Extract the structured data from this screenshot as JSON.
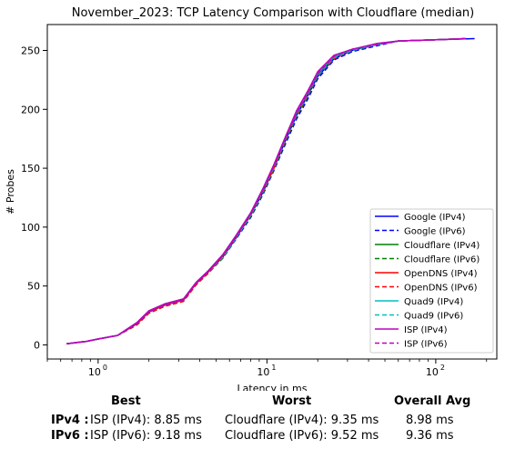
{
  "chart_data": {
    "type": "line",
    "title": "November_2023: TCP Latency Comparison with Cloudflare (median)",
    "xlabel": "Latency in ms",
    "ylabel": "# Probes",
    "xscale": "log",
    "xlim": [
      0.5,
      230
    ],
    "ylim": [
      -12,
      272
    ],
    "x_ticks": [
      1,
      10,
      100
    ],
    "x_tick_labels": [
      "10",
      "10",
      "10"
    ],
    "x_tick_exponents": [
      "0",
      "1",
      "2"
    ],
    "y_ticks": [
      0,
      50,
      100,
      150,
      200,
      250
    ],
    "y_tick_labels": [
      "0",
      "50",
      "100",
      "150",
      "200",
      "250"
    ],
    "grid": false,
    "legend_position": "lower right",
    "series": [
      {
        "name": "Google (IPv4)",
        "color": "#0000ff",
        "dash": false,
        "x": [
          0.65,
          0.85,
          1.0,
          1.3,
          1.7,
          2.0,
          2.5,
          3.2,
          3.8,
          4.5,
          5.5,
          6.5,
          8.0,
          9.5,
          11.0,
          13.0,
          15.0,
          17.5,
          20.0,
          25.0,
          32.0,
          45.0,
          60.0,
          100.0,
          170.0
        ],
        "y": [
          1,
          3,
          5,
          8,
          18,
          28,
          34,
          38,
          52,
          62,
          75,
          90,
          110,
          130,
          150,
          175,
          195,
          212,
          228,
          243,
          250,
          255,
          258,
          259,
          260
        ]
      },
      {
        "name": "Google (IPv6)",
        "color": "#0000ff",
        "dash": true,
        "x": [
          0.65,
          0.85,
          1.0,
          1.3,
          1.7,
          2.0,
          2.5,
          3.2,
          3.8,
          4.5,
          5.5,
          6.5,
          8.0,
          9.5,
          11.0,
          13.0,
          15.0,
          17.5,
          20.0,
          25.0,
          32.0,
          45.0,
          60.0,
          100.0,
          150.0
        ],
        "y": [
          1,
          3,
          5,
          8,
          17,
          27,
          33,
          37,
          51,
          61,
          74,
          89,
          108,
          128,
          148,
          172,
          192,
          209,
          226,
          242,
          249,
          254,
          258,
          259,
          260
        ]
      },
      {
        "name": "Cloudflare (IPv4)",
        "color": "#008000",
        "dash": false,
        "x": [
          0.65,
          0.85,
          1.0,
          1.3,
          1.7,
          2.0,
          2.5,
          3.2,
          3.8,
          4.5,
          5.5,
          6.5,
          8.0,
          9.5,
          11.0,
          13.0,
          15.0,
          17.5,
          20.0,
          25.0,
          32.0,
          45.0,
          60.0,
          100.0,
          150.0
        ],
        "y": [
          1,
          3,
          5,
          8,
          18,
          28,
          34,
          38,
          52,
          62,
          76,
          91,
          111,
          132,
          152,
          177,
          197,
          214,
          230,
          244,
          251,
          255,
          258,
          259,
          260
        ]
      },
      {
        "name": "Cloudflare (IPv6)",
        "color": "#008000",
        "dash": true,
        "x": [
          0.65,
          0.85,
          1.0,
          1.3,
          1.7,
          2.0,
          2.5,
          3.2,
          3.8,
          4.5,
          5.5,
          6.5,
          8.0,
          9.5,
          11.0,
          13.0,
          15.0,
          17.5,
          20.0,
          25.0,
          32.0,
          45.0,
          60.0,
          100.0,
          150.0
        ],
        "y": [
          1,
          3,
          5,
          8,
          17,
          27,
          33,
          37,
          51,
          61,
          74,
          90,
          109,
          129,
          149,
          174,
          194,
          211,
          228,
          243,
          250,
          255,
          258,
          259,
          260
        ]
      },
      {
        "name": "OpenDNS (IPv4)",
        "color": "#ff0000",
        "dash": false,
        "x": [
          0.65,
          0.85,
          1.0,
          1.3,
          1.7,
          2.0,
          2.5,
          3.2,
          3.8,
          4.5,
          5.5,
          6.5,
          8.0,
          9.5,
          11.0,
          12.0,
          13.0,
          15.0,
          17.5,
          20.0,
          25.0,
          32.0,
          45.0,
          60.0,
          100.0,
          150.0
        ],
        "y": [
          1,
          3,
          5,
          8,
          18,
          28,
          34,
          38,
          52,
          62,
          76,
          91,
          111,
          132,
          150,
          166,
          178,
          198,
          215,
          231,
          245,
          251,
          255,
          258,
          259,
          260
        ]
      },
      {
        "name": "OpenDNS (IPv6)",
        "color": "#ff0000",
        "dash": true,
        "x": [
          0.65,
          0.85,
          1.0,
          1.3,
          1.7,
          2.0,
          2.5,
          3.2,
          3.8,
          4.5,
          5.5,
          6.5,
          8.0,
          9.5,
          11.0,
          13.0,
          15.0,
          17.5,
          20.0,
          25.0,
          32.0,
          45.0,
          60.0,
          100.0,
          150.0
        ],
        "y": [
          1,
          3,
          5,
          8,
          17,
          27,
          33,
          37,
          51,
          61,
          75,
          90,
          110,
          130,
          150,
          175,
          195,
          212,
          229,
          243,
          250,
          255,
          258,
          259,
          260
        ]
      },
      {
        "name": "Quad9 (IPv4)",
        "color": "#00bfbf",
        "dash": false,
        "x": [
          0.65,
          0.85,
          1.0,
          1.3,
          1.7,
          2.0,
          2.5,
          3.2,
          3.8,
          4.5,
          5.5,
          6.5,
          8.0,
          9.5,
          11.0,
          13.0,
          15.0,
          17.5,
          20.0,
          25.0,
          32.0,
          45.0,
          60.0,
          100.0,
          150.0
        ],
        "y": [
          1,
          3,
          5,
          8,
          19,
          29,
          35,
          39,
          53,
          63,
          77,
          92,
          112,
          133,
          153,
          178,
          198,
          215,
          231,
          245,
          251,
          255,
          258,
          259,
          260
        ]
      },
      {
        "name": "Quad9 (IPv6)",
        "color": "#00bfbf",
        "dash": true,
        "x": [
          0.65,
          0.85,
          1.0,
          1.3,
          1.7,
          2.0,
          2.5,
          3.2,
          3.8,
          4.5,
          5.5,
          6.5,
          8.0,
          9.5,
          11.0,
          13.0,
          15.0,
          17.5,
          20.0,
          25.0,
          32.0,
          45.0,
          60.0,
          100.0,
          150.0
        ],
        "y": [
          1,
          3,
          5,
          8,
          18,
          28,
          34,
          38,
          52,
          62,
          75,
          90,
          110,
          131,
          151,
          176,
          196,
          213,
          229,
          244,
          250,
          255,
          258,
          259,
          260
        ]
      },
      {
        "name": "ISP (IPv4)",
        "color": "#bf00bf",
        "dash": false,
        "x": [
          0.65,
          0.85,
          1.0,
          1.3,
          1.7,
          2.0,
          2.5,
          3.2,
          3.8,
          4.5,
          5.5,
          6.5,
          8.0,
          9.5,
          11.0,
          13.0,
          15.0,
          17.5,
          20.0,
          25.0,
          32.0,
          45.0,
          60.0,
          100.0,
          150.0
        ],
        "y": [
          1,
          3,
          5,
          8,
          19,
          29,
          35,
          39,
          53,
          63,
          77,
          92,
          112,
          133,
          153,
          178,
          199,
          216,
          232,
          246,
          251,
          256,
          258,
          259,
          260
        ]
      },
      {
        "name": "ISP (IPv6)",
        "color": "#bf00bf",
        "dash": true,
        "x": [
          0.65,
          0.85,
          1.0,
          1.3,
          1.7,
          2.0,
          2.5,
          3.2,
          3.8,
          4.5,
          5.5,
          6.5,
          8.0,
          9.5,
          11.0,
          13.0,
          15.0,
          17.5,
          20.0,
          25.0,
          32.0,
          45.0,
          60.0,
          100.0,
          150.0
        ],
        "y": [
          1,
          3,
          5,
          8,
          18,
          28,
          34,
          38,
          52,
          62,
          76,
          91,
          111,
          132,
          152,
          177,
          197,
          214,
          230,
          245,
          251,
          255,
          258,
          259,
          260
        ]
      }
    ]
  },
  "summary": {
    "headers": {
      "best": "Best",
      "worst": "Worst",
      "avg": "Overall Avg"
    },
    "rows": [
      {
        "label": "IPv4 :",
        "best": "ISP (IPv4): 8.85 ms",
        "worst": "Cloudflare (IPv4): 9.35 ms",
        "avg": "8.98 ms"
      },
      {
        "label": "IPv6 :",
        "best": "ISP (IPv6): 9.18 ms",
        "worst": "Cloudflare (IPv6): 9.52 ms",
        "avg": "9.36 ms"
      }
    ]
  }
}
